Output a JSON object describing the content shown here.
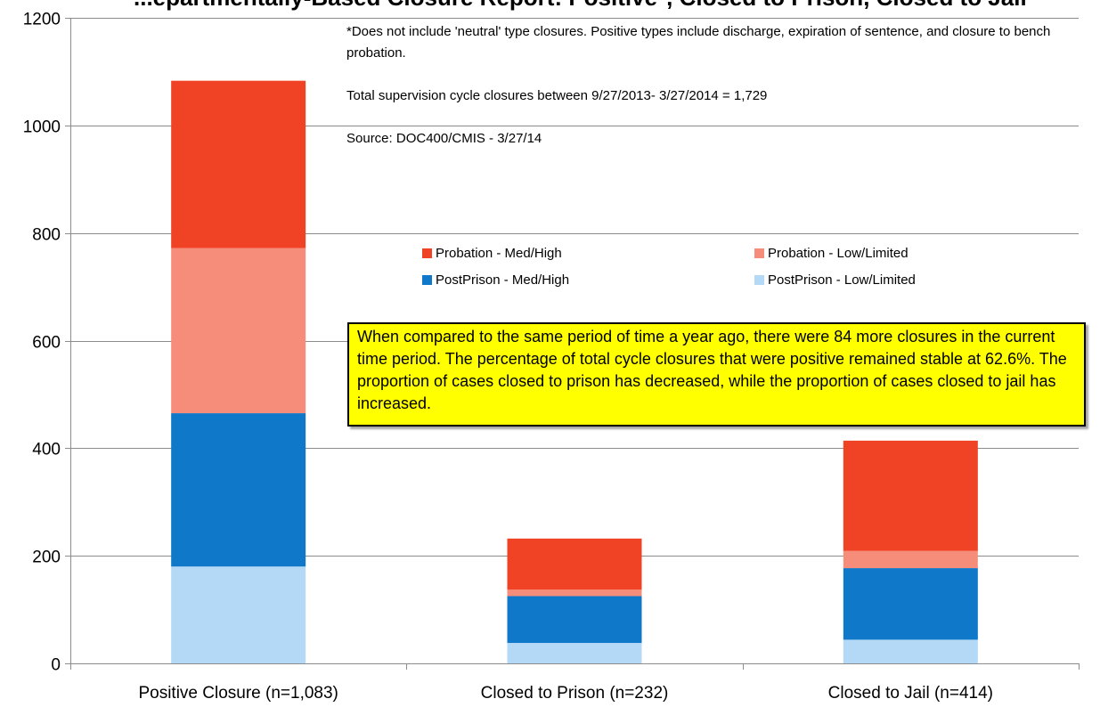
{
  "chart_data": {
    "type": "bar",
    "stacked": true,
    "title": "...epartmentally-Based Closure Report: Positive*, Closed to Prison, Closed to Jail",
    "categories": [
      "Positive Closure (n=1,083)",
      "Closed to Prison (n=232)",
      "Closed to Jail (n=414)"
    ],
    "series": [
      {
        "name": "PostPrison - Low/Limited",
        "color": "#b4d9f6",
        "values": [
          180,
          38,
          44
        ]
      },
      {
        "name": "PostPrison - Med/High",
        "color": "#0f78c9",
        "values": [
          285,
          87,
          133
        ]
      },
      {
        "name": "Probation - Low/Limited",
        "color": "#f68c7a",
        "values": [
          307,
          12,
          32
        ]
      },
      {
        "name": "Probation - Med/High",
        "color": "#f04325",
        "values": [
          311,
          95,
          205
        ]
      }
    ],
    "ylim": [
      0,
      1200
    ],
    "yticks": [
      0,
      200,
      400,
      600,
      800,
      1000,
      1200
    ],
    "ytick_labels": [
      "0",
      "200",
      "400",
      "600",
      "800",
      "1000",
      "1200"
    ],
    "grid": true,
    "legend_placement": "center-right",
    "legend_order": [
      "Probation - Med/High",
      "Probation - Low/Limited",
      "PostPrison - Med/High",
      "PostPrison - Low/Limited"
    ],
    "notes": [
      "*Does not include 'neutral' type closures. Positive types include discharge, expiration of sentence, and closure to bench probation.",
      "Total supervision cycle closures between 9/27/2013- 3/27/2014 = 1,729",
      "Source: DOC400/CMIS  - 3/27/14"
    ],
    "callout": "When compared to the same period of time a year ago, there were 84 more closures in the current time period.  The percentage of total cycle closures that were positive remained stable at 62.6%.  The proportion of cases closed to prison has decreased, while the proportion of cases closed to jail has increased."
  }
}
